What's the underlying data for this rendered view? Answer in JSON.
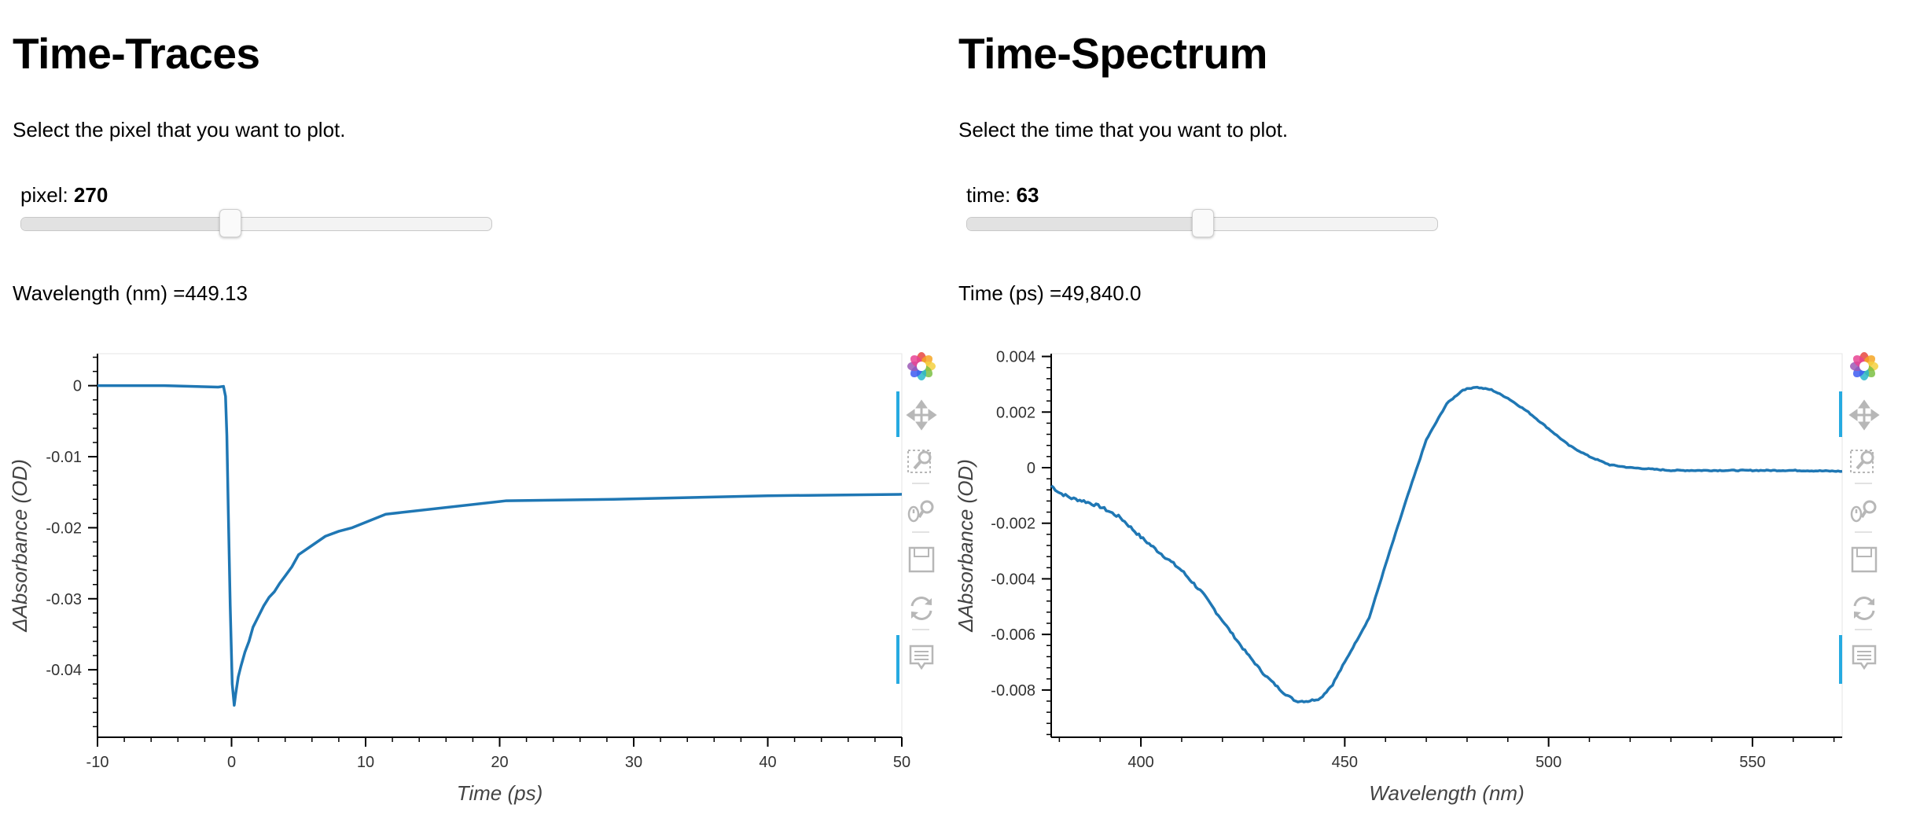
{
  "left_panel": {
    "title": "Time-Traces",
    "description": "Select the pixel that you want to plot.",
    "slider": {
      "label": "pixel: ",
      "value": "270",
      "fraction": 0.44
    },
    "readout": "Wavelength (nm) =449.13"
  },
  "right_panel": {
    "title": "Time-Spectrum",
    "description": "Select the time that you want to plot.",
    "slider": {
      "label": "time: ",
      "value": "63",
      "fraction": 0.5
    },
    "readout": "Time (ps) =49,840.0"
  },
  "toolbar": {
    "icons": [
      "bokeh-logo-icon",
      "pan-icon",
      "box-zoom-icon",
      "wheel-zoom-icon",
      "save-icon",
      "reset-icon",
      "hover-icon"
    ],
    "accent_color": "#26aae1"
  },
  "line_color": "#1f77b4",
  "chart_data": [
    {
      "type": "line",
      "title": "",
      "xlabel": "Time (ps)",
      "ylabel": "ΔAbsorbance (OD)",
      "xlim": [
        -10,
        50
      ],
      "ylim": [
        -0.0495,
        0.0045
      ],
      "xticks": [
        -10,
        0,
        10,
        20,
        30,
        40,
        50
      ],
      "xtick_labels": [
        "-10",
        "0",
        "10",
        "20",
        "30",
        "40",
        "50"
      ],
      "yticks": [
        0,
        -0.01,
        -0.02,
        -0.03,
        -0.04
      ],
      "ytick_labels": [
        "0",
        "-0.01",
        "-0.02",
        "-0.03",
        "-0.04"
      ],
      "grid": false,
      "series": [
        {
          "x": [
            -10,
            -5,
            -1,
            -0.6,
            -0.45,
            -0.35,
            -0.25,
            -0.1,
            0.05,
            0.2,
            0.3,
            0.5,
            0.7,
            1.0,
            1.3,
            1.6,
            2.0,
            2.4,
            2.8,
            3.2,
            3.6,
            4.0,
            4.5,
            5.0,
            6.0,
            7.0,
            8.0,
            9.0,
            11.5,
            20.5,
            28.5,
            40,
            50
          ],
          "y": [
            0.0,
            0.0,
            -0.0002,
            -0.0001,
            -0.0015,
            -0.007,
            -0.017,
            -0.031,
            -0.042,
            -0.045,
            -0.0435,
            -0.041,
            -0.0395,
            -0.0375,
            -0.036,
            -0.034,
            -0.0325,
            -0.031,
            -0.0298,
            -0.029,
            -0.0278,
            -0.0268,
            -0.0255,
            -0.0238,
            -0.0225,
            -0.0212,
            -0.0205,
            -0.02,
            -0.0181,
            -0.0162,
            -0.016,
            -0.0155,
            -0.0153
          ]
        }
      ]
    },
    {
      "type": "line",
      "title": "",
      "xlabel": "Wavelength (nm)",
      "ylabel": "ΔAbsorbance (OD)",
      "xlim": [
        378,
        572
      ],
      "ylim": [
        -0.0097,
        0.0041
      ],
      "xticks": [
        400,
        450,
        500,
        550
      ],
      "xtick_labels": [
        "400",
        "450",
        "500",
        "550"
      ],
      "yticks": [
        0.004,
        0.002,
        0,
        -0.002,
        -0.004,
        -0.006,
        -0.008
      ],
      "ytick_labels": [
        "0.004",
        "0.002",
        "0",
        "-0.002",
        "-0.004",
        "-0.006",
        "-0.008"
      ],
      "grid": false,
      "series": [
        {
          "x": [
            378,
            380,
            383,
            386,
            390,
            395,
            400,
            405,
            410,
            415,
            420,
            425,
            430,
            435,
            438,
            441,
            444,
            447,
            450,
            453,
            456,
            460,
            465,
            470,
            475,
            479,
            482,
            486,
            490,
            495,
            500,
            505,
            510,
            515,
            520,
            530,
            540,
            550,
            560,
            572
          ],
          "y": [
            -0.00065,
            -0.0009,
            -0.0011,
            -0.0012,
            -0.0014,
            -0.0018,
            -0.0025,
            -0.0031,
            -0.0037,
            -0.0045,
            -0.0055,
            -0.0065,
            -0.0074,
            -0.0081,
            -0.0084,
            -0.0084,
            -0.0083,
            -0.0078,
            -0.007,
            -0.0062,
            -0.0054,
            -0.0035,
            -0.0012,
            0.001,
            0.0023,
            0.0028,
            0.0029,
            0.0028,
            0.0025,
            0.002,
            0.0014,
            0.0008,
            0.0004,
            0.0001,
            0.0,
            -0.0001,
            -0.0001,
            -0.0001,
            -0.0001,
            -0.00013
          ],
          "noise": 5e-05
        }
      ]
    }
  ]
}
